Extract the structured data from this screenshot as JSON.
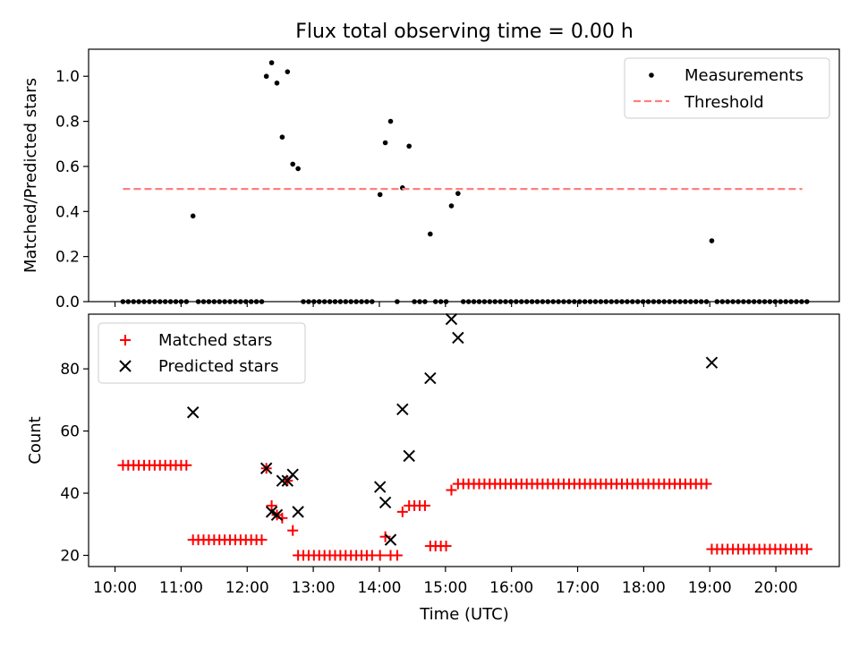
{
  "chart_data": {
    "title": "Flux total observing time = 0.00 h",
    "xlabel": "Time (UTC)",
    "x_unit": "hours UTC",
    "xlim": [
      9.6,
      20.96
    ],
    "xticks": [
      10,
      11,
      12,
      13,
      14,
      15,
      16,
      17,
      18,
      19,
      20
    ],
    "xtick_labels": [
      "10:00",
      "11:00",
      "12:00",
      "13:00",
      "14:00",
      "15:00",
      "16:00",
      "17:00",
      "18:00",
      "19:00",
      "20:00"
    ],
    "panels": [
      {
        "id": "ratio",
        "type": "scatter",
        "ylabel": "Matched/Predicted stars",
        "ylim": [
          0,
          1.12
        ],
        "yticks": [
          0,
          0.2,
          0.4,
          0.6,
          0.8,
          1.0
        ],
        "ytick_labels": [
          "0.0",
          "0.2",
          "0.4",
          "0.6",
          "0.8",
          "1.0"
        ],
        "legend_position": "top-right",
        "series": [
          {
            "name": "Measurements",
            "kind": "scatter",
            "marker": "dot",
            "color": "#000000",
            "x": [
              10.12,
              10.2,
              10.28,
              10.36,
              10.44,
              10.52,
              10.6,
              10.68,
              10.76,
              10.84,
              10.92,
              11.0,
              11.08,
              11.18,
              11.26,
              11.34,
              11.42,
              11.5,
              11.58,
              11.66,
              11.74,
              11.82,
              11.9,
              11.98,
              12.06,
              12.14,
              12.22,
              12.29,
              12.37,
              12.45,
              12.53,
              12.61,
              12.69,
              12.77,
              12.85,
              12.93,
              13.01,
              13.09,
              13.17,
              13.25,
              13.33,
              13.41,
              13.49,
              13.57,
              13.65,
              13.73,
              13.81,
              13.89,
              14.01,
              14.09,
              14.17,
              14.27,
              14.35,
              14.45,
              14.53,
              14.61,
              14.69,
              14.77,
              14.85,
              14.93,
              15.01,
              15.09,
              15.19,
              15.27,
              15.35,
              15.43,
              15.51,
              15.59,
              15.67,
              15.75,
              15.83,
              15.91,
              15.99,
              16.07,
              16.15,
              16.23,
              16.31,
              16.39,
              16.47,
              16.55,
              16.63,
              16.71,
              16.79,
              16.87,
              16.95,
              17.03,
              17.11,
              17.19,
              17.27,
              17.35,
              17.43,
              17.51,
              17.59,
              17.67,
              17.75,
              17.83,
              17.91,
              17.99,
              18.07,
              18.15,
              18.23,
              18.31,
              18.39,
              18.47,
              18.55,
              18.63,
              18.71,
              18.79,
              18.87,
              18.95,
              19.03,
              19.11,
              19.19,
              19.27,
              19.35,
              19.43,
              19.51,
              19.59,
              19.67,
              19.75,
              19.83,
              19.91,
              19.99,
              20.07,
              20.15,
              20.23,
              20.31,
              20.39,
              20.47
            ],
            "y": [
              0,
              0,
              0,
              0,
              0,
              0,
              0,
              0,
              0,
              0,
              0,
              0,
              0,
              0.38,
              0,
              0,
              0,
              0,
              0,
              0,
              0,
              0,
              0,
              0,
              0,
              0,
              0,
              1.0,
              1.06,
              0.97,
              0.73,
              1.02,
              0.61,
              0.59,
              0,
              0,
              0,
              0,
              0,
              0,
              0,
              0,
              0,
              0,
              0,
              0,
              0,
              0,
              0.475,
              0.705,
              0.8,
              0,
              0.505,
              0.69,
              0,
              0,
              0,
              0.3,
              0,
              0,
              0,
              0.425,
              0.48,
              0,
              0,
              0,
              0,
              0,
              0,
              0,
              0,
              0,
              0,
              0,
              0,
              0,
              0,
              0,
              0,
              0,
              0,
              0,
              0,
              0,
              0,
              0,
              0,
              0,
              0,
              0,
              0,
              0,
              0,
              0,
              0,
              0,
              0,
              0,
              0,
              0,
              0,
              0,
              0,
              0,
              0,
              0,
              0,
              0,
              0,
              0,
              0.27,
              0,
              0,
              0,
              0,
              0,
              0,
              0,
              0,
              0,
              0,
              0,
              0,
              0,
              0,
              0,
              0,
              0,
              0
            ]
          },
          {
            "name": "Threshold",
            "kind": "line",
            "style": "dashed",
            "color": "#ff7f7f",
            "x": [
              10.12,
              20.4
            ],
            "y": [
              0.5,
              0.5
            ]
          }
        ]
      },
      {
        "id": "count",
        "type": "scatter",
        "ylabel": "Count",
        "ylim": [
          16.4,
          97.6
        ],
        "yticks": [
          20,
          40,
          60,
          80
        ],
        "ytick_labels": [
          "20",
          "40",
          "60",
          "80"
        ],
        "legend_position": "top-left",
        "series": [
          {
            "name": "Matched stars",
            "kind": "scatter",
            "marker": "plus",
            "color": "#ff0000",
            "x": [
              10.12,
              10.2,
              10.28,
              10.36,
              10.44,
              10.52,
              10.6,
              10.68,
              10.76,
              10.84,
              10.92,
              11.0,
              11.08,
              11.18,
              11.26,
              11.34,
              11.42,
              11.5,
              11.58,
              11.66,
              11.74,
              11.82,
              11.9,
              11.98,
              12.06,
              12.14,
              12.22,
              12.29,
              12.37,
              12.45,
              12.53,
              12.61,
              12.69,
              12.77,
              12.85,
              12.93,
              13.01,
              13.09,
              13.17,
              13.25,
              13.33,
              13.41,
              13.49,
              13.57,
              13.65,
              13.73,
              13.81,
              13.89,
              14.01,
              14.09,
              14.17,
              14.27,
              14.35,
              14.45,
              14.53,
              14.61,
              14.69,
              14.77,
              14.85,
              14.93,
              15.01,
              15.09,
              15.19,
              15.27,
              15.35,
              15.43,
              15.51,
              15.59,
              15.67,
              15.75,
              15.83,
              15.91,
              15.99,
              16.07,
              16.15,
              16.23,
              16.31,
              16.39,
              16.47,
              16.55,
              16.63,
              16.71,
              16.79,
              16.87,
              16.95,
              17.03,
              17.11,
              17.19,
              17.27,
              17.35,
              17.43,
              17.51,
              17.59,
              17.67,
              17.75,
              17.83,
              17.91,
              17.99,
              18.07,
              18.15,
              18.23,
              18.31,
              18.39,
              18.47,
              18.55,
              18.63,
              18.71,
              18.79,
              18.87,
              18.95,
              19.03,
              19.11,
              19.19,
              19.27,
              19.35,
              19.43,
              19.51,
              19.59,
              19.67,
              19.75,
              19.83,
              19.91,
              19.99,
              20.07,
              20.15,
              20.23,
              20.31,
              20.39,
              20.47
            ],
            "y": [
              49,
              49,
              49,
              49,
              49,
              49,
              49,
              49,
              49,
              49,
              49,
              49,
              49,
              25,
              25,
              25,
              25,
              25,
              25,
              25,
              25,
              25,
              25,
              25,
              25,
              25,
              25,
              48,
              36,
              33,
              32,
              44,
              28,
              20,
              20,
              20,
              20,
              20,
              20,
              20,
              20,
              20,
              20,
              20,
              20,
              20,
              20,
              20,
              20,
              26,
              20,
              20,
              34,
              36,
              36,
              36,
              36,
              23,
              23,
              23,
              23,
              41,
              43,
              43,
              43,
              43,
              43,
              43,
              43,
              43,
              43,
              43,
              43,
              43,
              43,
              43,
              43,
              43,
              43,
              43,
              43,
              43,
              43,
              43,
              43,
              43,
              43,
              43,
              43,
              43,
              43,
              43,
              43,
              43,
              43,
              43,
              43,
              43,
              43,
              43,
              43,
              43,
              43,
              43,
              43,
              43,
              43,
              43,
              43,
              43,
              22,
              22,
              22,
              22,
              22,
              22,
              22,
              22,
              22,
              22,
              22,
              22,
              22,
              22,
              22,
              22,
              22,
              22,
              22
            ]
          },
          {
            "name": "Predicted stars",
            "kind": "scatter",
            "marker": "x",
            "color": "#000000",
            "x": [
              11.18,
              12.29,
              12.37,
              12.45,
              12.53,
              12.61,
              12.69,
              12.77,
              14.01,
              14.09,
              14.17,
              14.35,
              14.45,
              14.77,
              15.09,
              15.19,
              19.03
            ],
            "y": [
              66,
              48,
              34,
              33,
              44,
              44,
              46,
              34,
              42,
              37,
              25,
              67,
              52,
              77,
              96,
              90,
              82
            ]
          }
        ]
      }
    ]
  }
}
